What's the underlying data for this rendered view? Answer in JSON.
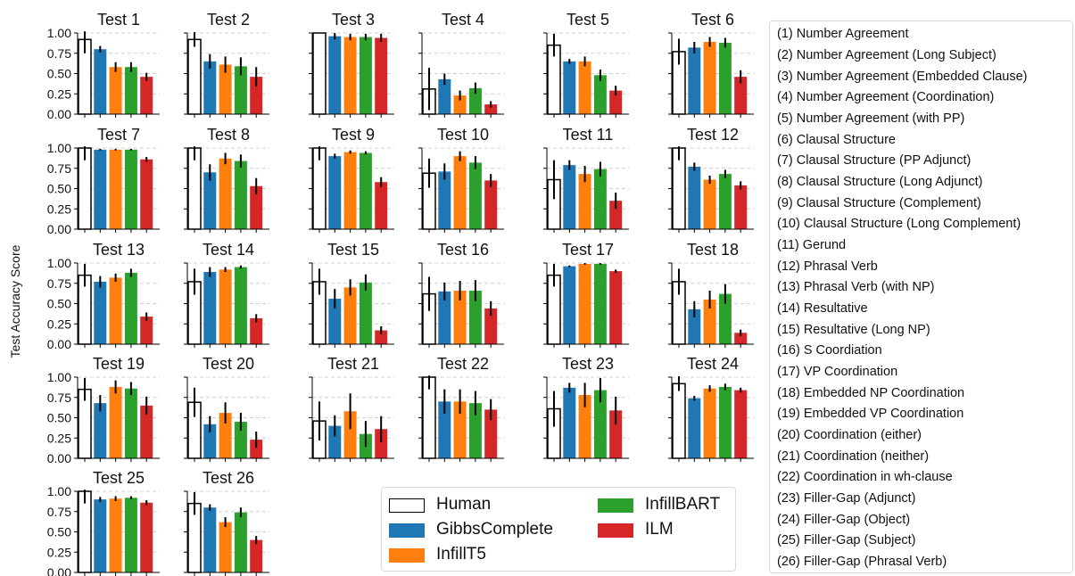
{
  "chart_data": {
    "type": "bar",
    "ylabel": "Test Accuracy Score",
    "yticks": [
      "0.00",
      "0.25",
      "0.50",
      "0.75",
      "1.00"
    ],
    "ylim": [
      0,
      1
    ],
    "grid": "horizontal dashed",
    "series": [
      {
        "name": "Human",
        "color": "#ffffff",
        "edge": "#000000"
      },
      {
        "name": "GibbsComplete",
        "color": "#1f77b4"
      },
      {
        "name": "InfillT5",
        "color": "#ff7f0e"
      },
      {
        "name": "InfillBART",
        "color": "#2ca02c"
      },
      {
        "name": "ILM",
        "color": "#d62728"
      }
    ],
    "panels": [
      {
        "title": "Test 1",
        "values": [
          0.92,
          0.8,
          0.58,
          0.58,
          0.46
        ],
        "err": [
          0.17,
          0.04,
          0.06,
          0.06,
          0.05
        ]
      },
      {
        "title": "Test 2",
        "values": [
          0.92,
          0.65,
          0.61,
          0.59,
          0.46
        ],
        "err": [
          0.09,
          0.09,
          0.1,
          0.11,
          0.12
        ]
      },
      {
        "title": "Test 3",
        "values": [
          1.0,
          0.96,
          0.95,
          0.95,
          0.94
        ],
        "err": [
          0.0,
          0.04,
          0.04,
          0.04,
          0.05
        ]
      },
      {
        "title": "Test 4",
        "values": [
          0.31,
          0.43,
          0.23,
          0.32,
          0.12
        ],
        "err": [
          0.26,
          0.07,
          0.06,
          0.07,
          0.04
        ]
      },
      {
        "title": "Test 5",
        "values": [
          0.85,
          0.65,
          0.65,
          0.48,
          0.29
        ],
        "err": [
          0.14,
          0.03,
          0.06,
          0.07,
          0.06
        ]
      },
      {
        "title": "Test 6",
        "values": [
          0.77,
          0.82,
          0.89,
          0.88,
          0.46
        ],
        "err": [
          0.16,
          0.07,
          0.06,
          0.06,
          0.08
        ]
      },
      {
        "title": "Test 7",
        "values": [
          1.0,
          0.98,
          0.98,
          0.98,
          0.86
        ],
        "err": [
          0.15,
          0.01,
          0.01,
          0.01,
          0.03
        ]
      },
      {
        "title": "Test 8",
        "values": [
          1.0,
          0.7,
          0.87,
          0.84,
          0.53
        ],
        "err": [
          0.15,
          0.1,
          0.07,
          0.08,
          0.1
        ]
      },
      {
        "title": "Test 9",
        "values": [
          1.0,
          0.9,
          0.95,
          0.94,
          0.58
        ],
        "err": [
          0.15,
          0.03,
          0.02,
          0.02,
          0.06
        ]
      },
      {
        "title": "Test 10",
        "values": [
          0.69,
          0.71,
          0.9,
          0.82,
          0.6
        ],
        "err": [
          0.18,
          0.1,
          0.06,
          0.08,
          0.08
        ]
      },
      {
        "title": "Test 11",
        "values": [
          0.61,
          0.79,
          0.68,
          0.74,
          0.35
        ],
        "err": [
          0.24,
          0.06,
          0.1,
          0.09,
          0.1
        ]
      },
      {
        "title": "Test 12",
        "values": [
          1.0,
          0.77,
          0.61,
          0.68,
          0.54
        ],
        "err": [
          0.15,
          0.05,
          0.05,
          0.05,
          0.05
        ]
      },
      {
        "title": "Test 13",
        "values": [
          0.85,
          0.77,
          0.82,
          0.88,
          0.34
        ],
        "err": [
          0.14,
          0.07,
          0.05,
          0.05,
          0.05
        ]
      },
      {
        "title": "Test 14",
        "values": [
          0.77,
          0.89,
          0.92,
          0.95,
          0.32
        ],
        "err": [
          0.16,
          0.06,
          0.03,
          0.02,
          0.05
        ]
      },
      {
        "title": "Test 15",
        "values": [
          0.77,
          0.56,
          0.7,
          0.76,
          0.17
        ],
        "err": [
          0.16,
          0.12,
          0.1,
          0.1,
          0.05
        ]
      },
      {
        "title": "Test 16",
        "values": [
          0.62,
          0.65,
          0.66,
          0.66,
          0.44
        ],
        "err": [
          0.21,
          0.11,
          0.12,
          0.13,
          0.09
        ]
      },
      {
        "title": "Test 17",
        "values": [
          0.85,
          0.96,
          0.99,
          0.99,
          0.9
        ],
        "err": [
          0.14,
          0.01,
          0.01,
          0.01,
          0.02
        ]
      },
      {
        "title": "Test 18",
        "values": [
          0.77,
          0.43,
          0.55,
          0.62,
          0.14
        ],
        "err": [
          0.16,
          0.1,
          0.11,
          0.12,
          0.04
        ]
      },
      {
        "title": "Test 19",
        "values": [
          0.85,
          0.68,
          0.88,
          0.86,
          0.65
        ],
        "err": [
          0.14,
          0.1,
          0.08,
          0.08,
          0.11
        ]
      },
      {
        "title": "Test 20",
        "values": [
          0.69,
          0.42,
          0.56,
          0.45,
          0.23
        ],
        "err": [
          0.18,
          0.1,
          0.13,
          0.11,
          0.1
        ]
      },
      {
        "title": "Test 21",
        "values": [
          0.46,
          0.4,
          0.58,
          0.3,
          0.36
        ],
        "err": [
          0.24,
          0.13,
          0.22,
          0.16,
          0.16
        ]
      },
      {
        "title": "Test 22",
        "values": [
          1.0,
          0.7,
          0.7,
          0.68,
          0.6
        ],
        "err": [
          0.15,
          0.15,
          0.15,
          0.15,
          0.13
        ]
      },
      {
        "title": "Test 23",
        "values": [
          0.61,
          0.87,
          0.78,
          0.84,
          0.59
        ],
        "err": [
          0.22,
          0.06,
          0.15,
          0.15,
          0.17
        ]
      },
      {
        "title": "Test 24",
        "values": [
          0.92,
          0.74,
          0.86,
          0.88,
          0.84
        ],
        "err": [
          0.09,
          0.03,
          0.04,
          0.04,
          0.03
        ]
      },
      {
        "title": "Test 25",
        "values": [
          1.0,
          0.9,
          0.91,
          0.92,
          0.86
        ],
        "err": [
          0.15,
          0.03,
          0.03,
          0.02,
          0.03
        ]
      },
      {
        "title": "Test 26",
        "values": [
          0.85,
          0.8,
          0.62,
          0.74,
          0.4
        ],
        "err": [
          0.14,
          0.04,
          0.06,
          0.06,
          0.05
        ]
      }
    ],
    "test_legend": [
      "(1) Number Agreement",
      "(2) Number Agreement (Long Subject)",
      "(3) Number Agreement (Embedded Clause)",
      "(4) Number Agreement (Coordination)",
      "(5) Number Agreement (with PP)",
      "(6) Clausal Structure",
      "(7) Clausal Structure (PP Adjunct)",
      "(8) Clausal Structure (Long Adjunct)",
      "(9) Clausal Structure (Complement)",
      "(10) Clausal Structure (Long Complement)",
      "(11) Gerund",
      "(12) Phrasal Verb",
      "(13) Phrasal Verb (with NP)",
      "(14) Resultative",
      "(15) Resultative (Long NP)",
      "(16) S Coordiation",
      "(17) VP Coordination",
      "(18) Embedded NP Coordination",
      "(19) Embedded VP Coordination",
      "(20) Coordination (either)",
      "(21) Coordination (neither)",
      "(22) Coordination in wh-clause",
      "(23) Filler-Gap (Adjunct)",
      "(24) Filler-Gap (Object)",
      "(25) Filler-Gap (Subject)",
      "(26) Filler-Gap (Phrasal Verb)"
    ]
  }
}
